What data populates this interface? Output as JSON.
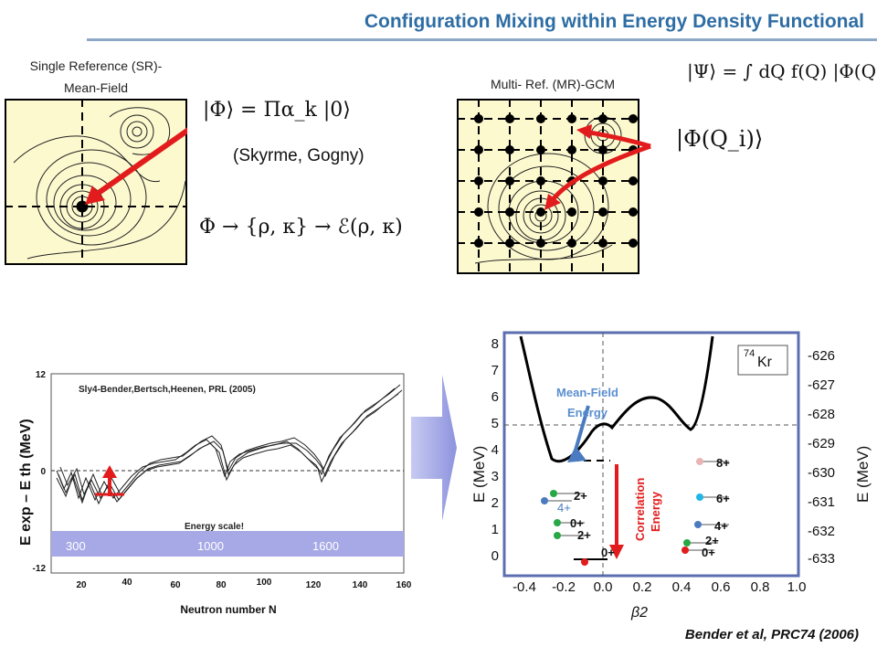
{
  "title": "Configuration Mixing within Energy Density Functional",
  "sr_panel": {
    "label_line1": "Single Reference  (SR)-",
    "label_line2": "Mean-Field",
    "formula_state": "|Φ⟩  =  Πα_k |0⟩",
    "functionals": "(Skyrme, Gogny)",
    "formula_density": "Φ → {ρ, κ} → ℰ(ρ, κ)"
  },
  "mr_panel": {
    "label": "Multi- Ref. (MR)-GCM",
    "formula_gcm": "|Ψ⟩ = ∫ dQ f(Q) |Φ(Q)⟩",
    "formula_phi_q": "|Φ(Q_i)⟩"
  },
  "bottom_left_chart": {
    "citation": "Sly4-Bender,Bertsch,Heenen, PRL (2005)",
    "y_label": "E exp – E th (MeV)",
    "y_ticks": [
      "12",
      "0",
      "-12"
    ],
    "x_label": "Neutron number N",
    "x_ticks": [
      "20",
      "40",
      "60",
      "80",
      "100",
      "120",
      "140",
      "160"
    ],
    "energy_scale_label": "Energy scale!",
    "band_labels": [
      "300",
      "1000",
      "1600"
    ]
  },
  "bottom_right_chart": {
    "nucleus": "74Kr",
    "nucleus_mass": "74",
    "nucleus_symbol": "Kr",
    "mean_field_label": "Mean-Field",
    "energy_label": "Energy",
    "correlation_label": "Correlation",
    "correlation_energy_label": "Energy",
    "left_axis_label": "E (MeV)",
    "right_axis_label": "E (MeV)",
    "x_axis_label": "β2",
    "left_ticks": [
      "0",
      "1",
      "2",
      "3",
      "4",
      "5",
      "6",
      "7",
      "8"
    ],
    "right_ticks": [
      "-626",
      "-627",
      "-628",
      "-629",
      "-630",
      "-631",
      "-632",
      "-633"
    ],
    "x_ticks": [
      "-0.4",
      "-0.2",
      "0.0",
      "0.2",
      "0.4",
      "0.6",
      "0.8",
      "1.0"
    ],
    "states_left": [
      "2+",
      "4+",
      "0+",
      "2+",
      "0+"
    ],
    "states_right": [
      "8+",
      "6+",
      "4+",
      "2+",
      "0+"
    ]
  },
  "reference": "Bender et al, PRC74 (2006)",
  "colors": {
    "title": "#2e6da4",
    "arrow": "#e21c1c",
    "panel_fill": "#fdf9cf",
    "band": "#a7a9e6",
    "frame": "#5b6fb0"
  }
}
